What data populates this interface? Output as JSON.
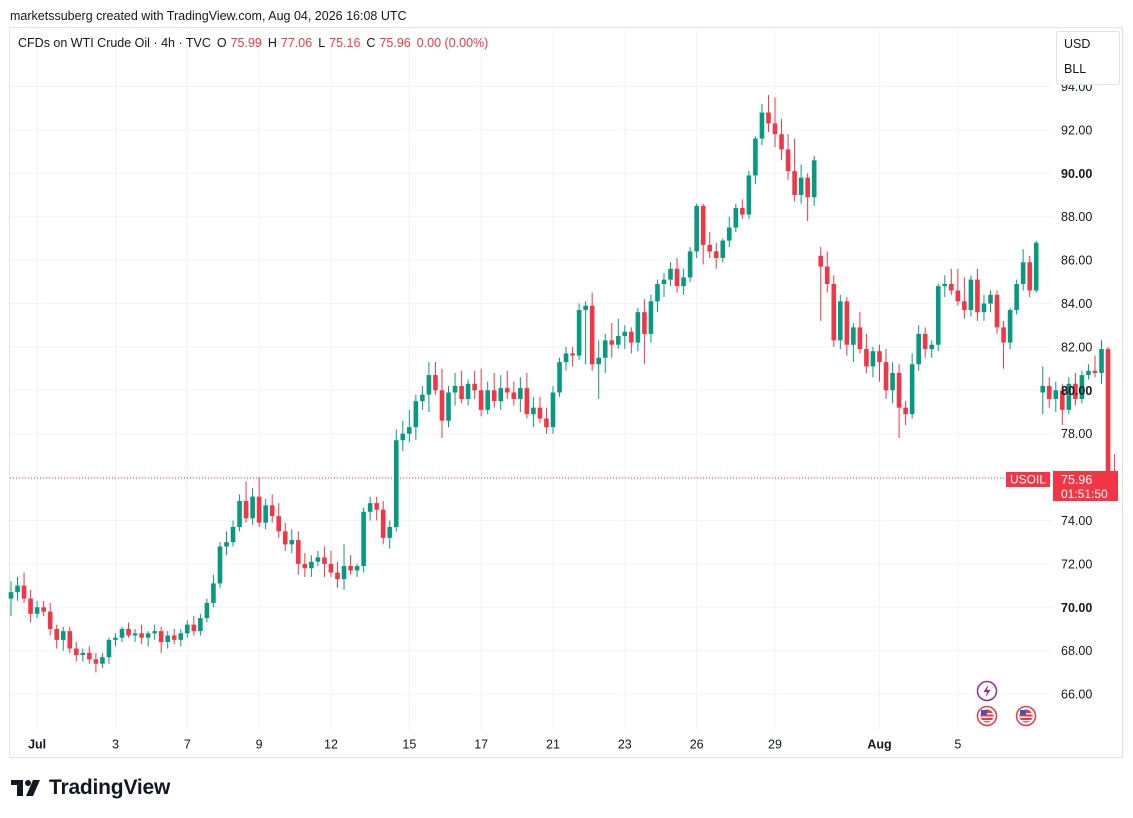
{
  "header": {
    "credit": "marketssuberg created with TradingView.com, Aug 04, 2026 16:08 UTC"
  },
  "legend": {
    "symbol": "CFDs on WTI Crude Oil · 4h · TVC",
    "o_label": "O",
    "o_value": "75.99",
    "h_label": "H",
    "h_value": "77.06",
    "l_label": "L",
    "l_value": "75.16",
    "c_label": "C",
    "c_value": "75.96",
    "change": "0.00 (0.00%)"
  },
  "units": {
    "currency": "USD",
    "unit": "BLL"
  },
  "price_tag": {
    "ticker": "USOIL",
    "price": "75.96",
    "countdown": "01:51:50"
  },
  "branding": {
    "name": "TradingView"
  },
  "colors": {
    "up": "#089981",
    "down": "#f23645",
    "grid": "#f0f3fa",
    "text": "#131722"
  },
  "icons": [
    "lightning-event-icon",
    "us-flag-event-icon",
    "us-flag-event-icon"
  ],
  "chart_data": {
    "type": "candlestick",
    "ylim": [
      64.5,
      95
    ],
    "y_ticks": [
      "66.00",
      "68.00",
      "70.00",
      "72.00",
      "74.00",
      "76.00",
      "78.00",
      "80.00",
      "82.00",
      "84.00",
      "86.00",
      "88.00",
      "90.00",
      "92.00",
      "94.00"
    ],
    "y_ticks_bold": [
      "70.00",
      "80.00",
      "90.00"
    ],
    "x_ticks": [
      {
        "label": "Jul",
        "bar": 4,
        "bold": true
      },
      {
        "label": "3",
        "bar": 16,
        "bold": false
      },
      {
        "label": "7",
        "bar": 27,
        "bold": false
      },
      {
        "label": "9",
        "bar": 38,
        "bold": false
      },
      {
        "label": "12",
        "bar": 49,
        "bold": false
      },
      {
        "label": "15",
        "bar": 61,
        "bold": false
      },
      {
        "label": "17",
        "bar": 72,
        "bold": false
      },
      {
        "label": "21",
        "bar": 83,
        "bold": false
      },
      {
        "label": "23",
        "bar": 94,
        "bold": false
      },
      {
        "label": "26",
        "bar": 105,
        "bold": false
      },
      {
        "label": "29",
        "bar": 117,
        "bold": false
      },
      {
        "label": "Aug",
        "bar": 133,
        "bold": true
      },
      {
        "label": "5",
        "bar": 145,
        "bold": false
      }
    ],
    "last_price": 75.96,
    "candles": [
      [
        70.4,
        71.2,
        69.6,
        70.7
      ],
      [
        70.7,
        71.4,
        70.3,
        71.0
      ],
      [
        71.0,
        71.6,
        70.2,
        70.4
      ],
      [
        70.4,
        70.8,
        69.3,
        69.7
      ],
      [
        69.7,
        70.3,
        69.5,
        70.0
      ],
      [
        70.0,
        70.3,
        69.6,
        69.8
      ],
      [
        69.8,
        70.2,
        68.7,
        69.0
      ],
      [
        69.0,
        69.2,
        68.1,
        68.5
      ],
      [
        68.5,
        69.1,
        68.0,
        68.9
      ],
      [
        68.9,
        69.1,
        67.9,
        68.1
      ],
      [
        68.1,
        68.4,
        67.5,
        67.8
      ],
      [
        67.8,
        68.1,
        67.5,
        67.9
      ],
      [
        67.9,
        68.2,
        67.4,
        67.6
      ],
      [
        67.6,
        67.9,
        67.0,
        67.4
      ],
      [
        67.4,
        67.9,
        67.2,
        67.7
      ],
      [
        67.7,
        68.6,
        67.4,
        68.5
      ],
      [
        68.5,
        68.8,
        68.2,
        68.6
      ],
      [
        68.6,
        69.1,
        68.4,
        69.0
      ],
      [
        69.0,
        69.3,
        68.6,
        68.7
      ],
      [
        68.7,
        69.0,
        68.4,
        68.8
      ],
      [
        68.8,
        69.2,
        68.3,
        68.6
      ],
      [
        68.6,
        68.9,
        68.2,
        68.8
      ],
      [
        68.8,
        69.2,
        68.5,
        68.9
      ],
      [
        68.9,
        69.1,
        67.9,
        68.4
      ],
      [
        68.4,
        68.9,
        68.1,
        68.7
      ],
      [
        68.7,
        69.0,
        68.3,
        68.5
      ],
      [
        68.5,
        69.0,
        68.2,
        68.8
      ],
      [
        68.8,
        69.4,
        68.6,
        69.2
      ],
      [
        69.2,
        69.6,
        68.7,
        68.9
      ],
      [
        68.9,
        69.7,
        68.7,
        69.5
      ],
      [
        69.5,
        70.4,
        69.3,
        70.2
      ],
      [
        70.2,
        71.5,
        70.0,
        71.1
      ],
      [
        71.1,
        73.0,
        70.9,
        72.8
      ],
      [
        72.8,
        73.5,
        72.4,
        73.0
      ],
      [
        73.0,
        74.0,
        72.8,
        73.7
      ],
      [
        73.7,
        75.2,
        73.5,
        74.9
      ],
      [
        74.9,
        75.8,
        73.9,
        74.1
      ],
      [
        74.1,
        75.5,
        73.8,
        75.1
      ],
      [
        75.1,
        76.0,
        73.7,
        73.9
      ],
      [
        73.9,
        75.0,
        73.6,
        74.7
      ],
      [
        74.7,
        75.2,
        73.9,
        74.2
      ],
      [
        74.2,
        74.8,
        73.2,
        73.5
      ],
      [
        73.5,
        73.9,
        72.6,
        72.9
      ],
      [
        72.9,
        73.6,
        72.5,
        73.1
      ],
      [
        73.1,
        73.5,
        71.5,
        72.0
      ],
      [
        72.0,
        72.5,
        71.4,
        71.8
      ],
      [
        71.8,
        72.4,
        71.4,
        72.1
      ],
      [
        72.1,
        72.6,
        71.9,
        72.3
      ],
      [
        72.3,
        72.8,
        71.4,
        72.0
      ],
      [
        72.0,
        72.6,
        71.4,
        71.6
      ],
      [
        71.6,
        72.1,
        70.9,
        71.3
      ],
      [
        71.3,
        72.9,
        70.8,
        71.9
      ],
      [
        71.9,
        72.4,
        71.5,
        71.7
      ],
      [
        71.7,
        72.0,
        71.4,
        71.9
      ],
      [
        71.9,
        74.6,
        71.6,
        74.4
      ],
      [
        74.4,
        75.1,
        74.0,
        74.8
      ],
      [
        74.8,
        75.1,
        74.0,
        74.5
      ],
      [
        74.5,
        74.9,
        72.9,
        73.2
      ],
      [
        73.2,
        74.0,
        72.7,
        73.7
      ],
      [
        73.7,
        78.2,
        73.5,
        77.7
      ],
      [
        77.7,
        78.6,
        77.2,
        78.0
      ],
      [
        78.0,
        79.1,
        77.6,
        78.3
      ],
      [
        78.3,
        79.8,
        77.7,
        79.5
      ],
      [
        79.5,
        80.2,
        79.1,
        79.8
      ],
      [
        79.8,
        81.3,
        79.0,
        80.7
      ],
      [
        80.7,
        81.3,
        79.8,
        80.0
      ],
      [
        80.0,
        81.0,
        77.8,
        78.6
      ],
      [
        78.6,
        80.2,
        78.3,
        79.9
      ],
      [
        79.9,
        80.8,
        79.3,
        80.2
      ],
      [
        80.2,
        80.9,
        79.4,
        79.6
      ],
      [
        79.6,
        80.5,
        79.3,
        80.3
      ],
      [
        80.3,
        80.9,
        79.6,
        80.0
      ],
      [
        80.0,
        81.0,
        78.8,
        79.1
      ],
      [
        79.1,
        80.4,
        78.9,
        80.0
      ],
      [
        80.0,
        80.8,
        79.2,
        79.5
      ],
      [
        79.5,
        80.7,
        79.1,
        80.1
      ],
      [
        80.1,
        80.9,
        79.6,
        79.9
      ],
      [
        79.9,
        80.4,
        79.3,
        79.6
      ],
      [
        79.6,
        80.6,
        79.0,
        80.1
      ],
      [
        80.1,
        80.8,
        78.7,
        78.9
      ],
      [
        78.9,
        79.7,
        78.3,
        79.2
      ],
      [
        79.2,
        79.7,
        78.5,
        78.7
      ],
      [
        78.7,
        79.2,
        78.0,
        78.3
      ],
      [
        78.3,
        80.2,
        78.0,
        79.9
      ],
      [
        79.9,
        81.5,
        79.7,
        81.3
      ],
      [
        81.3,
        82.0,
        80.9,
        81.7
      ],
      [
        81.7,
        82.0,
        81.1,
        81.6
      ],
      [
        81.6,
        84.0,
        81.4,
        83.7
      ],
      [
        83.7,
        84.1,
        81.2,
        83.9
      ],
      [
        83.9,
        84.5,
        80.9,
        81.2
      ],
      [
        81.2,
        82.3,
        79.6,
        81.5
      ],
      [
        81.5,
        82.6,
        80.8,
        82.3
      ],
      [
        82.3,
        83.1,
        81.5,
        82.1
      ],
      [
        82.1,
        83.3,
        81.9,
        82.5
      ],
      [
        82.5,
        83.0,
        81.9,
        82.7
      ],
      [
        82.7,
        82.9,
        81.7,
        82.2
      ],
      [
        82.2,
        83.8,
        81.8,
        83.6
      ],
      [
        83.6,
        84.2,
        81.2,
        82.6
      ],
      [
        82.6,
        84.4,
        82.2,
        84.1
      ],
      [
        84.1,
        85.1,
        83.6,
        84.9
      ],
      [
        84.9,
        85.4,
        84.3,
        85.1
      ],
      [
        85.1,
        85.9,
        84.8,
        85.6
      ],
      [
        85.6,
        86.1,
        84.5,
        84.8
      ],
      [
        84.8,
        85.6,
        84.4,
        85.2
      ],
      [
        85.2,
        86.6,
        85.0,
        86.4
      ],
      [
        86.4,
        88.6,
        86.1,
        88.5
      ],
      [
        88.5,
        88.6,
        85.8,
        86.7
      ],
      [
        86.7,
        87.3,
        86.1,
        86.4
      ],
      [
        86.4,
        86.8,
        85.6,
        86.1
      ],
      [
        86.1,
        87.0,
        85.9,
        86.9
      ],
      [
        86.9,
        88.0,
        86.6,
        87.5
      ],
      [
        87.5,
        88.6,
        87.3,
        88.4
      ],
      [
        88.4,
        88.8,
        87.9,
        88.1
      ],
      [
        88.1,
        90.1,
        87.9,
        89.9
      ],
      [
        89.9,
        91.7,
        89.5,
        91.6
      ],
      [
        91.6,
        93.2,
        91.3,
        92.8
      ],
      [
        92.8,
        93.6,
        91.9,
        92.3
      ],
      [
        92.3,
        93.5,
        91.2,
        91.8
      ],
      [
        91.8,
        92.5,
        90.6,
        91.1
      ],
      [
        91.1,
        91.8,
        89.7,
        90.1
      ],
      [
        90.1,
        91.6,
        88.7,
        89.0
      ],
      [
        89.0,
        90.4,
        88.6,
        89.8
      ],
      [
        89.8,
        90.0,
        87.8,
        88.9
      ],
      [
        88.9,
        90.8,
        88.5,
        90.6
      ],
      [
        86.2,
        86.6,
        83.2,
        85.7
      ],
      [
        85.7,
        86.4,
        84.5,
        84.9
      ],
      [
        84.9,
        85.3,
        82.0,
        82.3
      ],
      [
        82.3,
        84.4,
        81.9,
        84.1
      ],
      [
        84.1,
        84.3,
        81.6,
        82.1
      ],
      [
        82.1,
        83.1,
        81.3,
        82.9
      ],
      [
        82.9,
        83.6,
        81.7,
        81.9
      ],
      [
        81.9,
        82.6,
        80.8,
        81.1
      ],
      [
        81.1,
        82.0,
        80.6,
        81.8
      ],
      [
        81.8,
        82.1,
        80.4,
        81.3
      ],
      [
        81.3,
        81.9,
        79.6,
        80.0
      ],
      [
        80.0,
        81.3,
        79.4,
        80.8
      ],
      [
        80.8,
        81.2,
        77.8,
        79.2
      ],
      [
        79.2,
        79.5,
        78.4,
        78.9
      ],
      [
        78.9,
        81.7,
        78.7,
        81.2
      ],
      [
        81.2,
        83.0,
        80.9,
        82.6
      ],
      [
        82.6,
        82.9,
        81.5,
        81.9
      ],
      [
        81.9,
        82.3,
        81.5,
        82.1
      ],
      [
        82.1,
        84.9,
        81.8,
        84.8
      ],
      [
        84.8,
        85.3,
        84.3,
        84.9
      ],
      [
        84.9,
        85.6,
        84.4,
        84.6
      ],
      [
        84.6,
        85.6,
        83.9,
        84.1
      ],
      [
        84.1,
        85.2,
        83.3,
        83.7
      ],
      [
        83.7,
        85.3,
        83.4,
        85.1
      ],
      [
        85.1,
        85.6,
        83.2,
        83.6
      ],
      [
        83.6,
        84.4,
        83.2,
        84.0
      ],
      [
        84.0,
        84.6,
        83.6,
        84.4
      ],
      [
        84.4,
        84.6,
        82.6,
        82.9
      ],
      [
        82.9,
        83.2,
        81.0,
        82.2
      ],
      [
        82.2,
        83.8,
        81.9,
        83.7
      ],
      [
        83.7,
        85.1,
        83.5,
        84.9
      ],
      [
        84.9,
        86.5,
        84.6,
        85.9
      ],
      [
        85.9,
        86.2,
        84.3,
        84.6
      ],
      [
        84.6,
        86.9,
        84.5,
        86.8
      ],
      [
        79.9,
        81.1,
        78.9,
        80.2
      ],
      [
        80.2,
        80.6,
        79.2,
        79.6
      ],
      [
        79.6,
        80.4,
        79.0,
        80.0
      ],
      [
        80.0,
        80.3,
        78.4,
        79.1
      ],
      [
        79.1,
        80.6,
        78.9,
        80.3
      ],
      [
        80.3,
        80.8,
        79.3,
        79.6
      ],
      [
        79.6,
        80.9,
        79.4,
        80.7
      ],
      [
        80.7,
        81.2,
        80.5,
        80.9
      ],
      [
        80.9,
        81.6,
        80.6,
        80.8
      ],
      [
        80.8,
        82.3,
        80.3,
        81.9
      ],
      [
        81.9,
        82.0,
        75.6,
        75.99
      ],
      [
        75.99,
        77.06,
        75.16,
        75.96
      ]
    ]
  }
}
